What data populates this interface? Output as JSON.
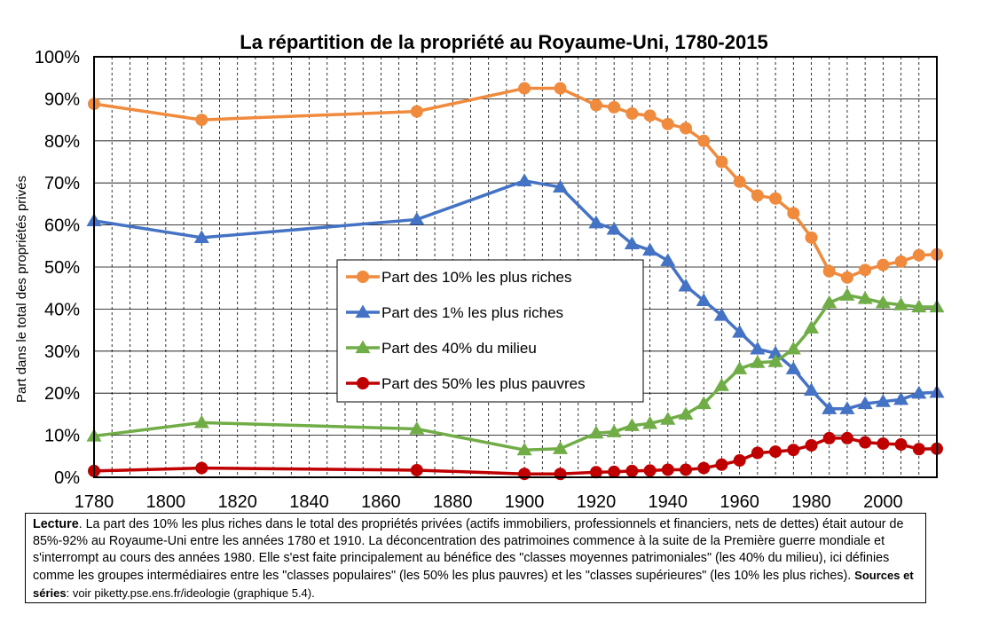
{
  "chart_data": {
    "type": "line",
    "title": "La répartition de la propriété au Royaume-Uni, 1780-2015",
    "xlabel": "",
    "ylabel": "Part dans le total des propriétés privés",
    "xlim": [
      1780,
      2015
    ],
    "ylim": [
      0,
      100
    ],
    "x_ticks": [
      "1780",
      "1800",
      "1820",
      "1840",
      "1860",
      "1880",
      "1900",
      "1920",
      "1940",
      "1960",
      "1980",
      "2000"
    ],
    "y_ticks": [
      "0%",
      "10%",
      "20%",
      "30%",
      "40%",
      "50%",
      "60%",
      "70%",
      "80%",
      "90%",
      "100%"
    ],
    "grid": true,
    "legend_position": "center",
    "series": [
      {
        "name": "Part des 10% les plus riches",
        "color": "#f08a3c",
        "marker": "circle",
        "points": [
          [
            1780,
            88.8
          ],
          [
            1810,
            85
          ],
          [
            1870,
            87
          ],
          [
            1900,
            92.5
          ],
          [
            1910,
            92.5
          ],
          [
            1920,
            88.5
          ],
          [
            1925,
            88
          ],
          [
            1930,
            86.5
          ],
          [
            1935,
            86
          ],
          [
            1940,
            84
          ],
          [
            1945,
            83
          ],
          [
            1950,
            80
          ],
          [
            1955,
            75
          ],
          [
            1960,
            70.3
          ],
          [
            1965,
            67
          ],
          [
            1970,
            66.3
          ],
          [
            1975,
            62.8
          ],
          [
            1980,
            57
          ],
          [
            1985,
            49
          ],
          [
            1990,
            47.5
          ],
          [
            1995,
            49.3
          ],
          [
            2000,
            50.5
          ],
          [
            2005,
            51.3
          ],
          [
            2010,
            52.8
          ],
          [
            2015,
            53
          ]
        ]
      },
      {
        "name": "Part des 1% les plus riches",
        "color": "#4472c4",
        "marker": "triangle",
        "points": [
          [
            1780,
            61
          ],
          [
            1810,
            57
          ],
          [
            1870,
            61.3
          ],
          [
            1900,
            70.5
          ],
          [
            1910,
            69
          ],
          [
            1920,
            60.5
          ],
          [
            1925,
            59
          ],
          [
            1930,
            55.5
          ],
          [
            1935,
            54
          ],
          [
            1940,
            51.5
          ],
          [
            1945,
            45.5
          ],
          [
            1950,
            42
          ],
          [
            1955,
            38.5
          ],
          [
            1960,
            34.5
          ],
          [
            1965,
            30.5
          ],
          [
            1970,
            29.5
          ],
          [
            1975,
            25.8
          ],
          [
            1980,
            20.7
          ],
          [
            1985,
            16.3
          ],
          [
            1990,
            16.3
          ],
          [
            1995,
            17.5
          ],
          [
            2000,
            18
          ],
          [
            2005,
            18.5
          ],
          [
            2010,
            20
          ],
          [
            2015,
            20.2
          ]
        ]
      },
      {
        "name": "Part des 40% du milieu",
        "color": "#70ad47",
        "marker": "triangle",
        "points": [
          [
            1780,
            9.8
          ],
          [
            1810,
            13
          ],
          [
            1870,
            11.5
          ],
          [
            1900,
            6.5
          ],
          [
            1910,
            6.8
          ],
          [
            1920,
            10.5
          ],
          [
            1925,
            10.8
          ],
          [
            1930,
            12.3
          ],
          [
            1935,
            12.8
          ],
          [
            1940,
            13.8
          ],
          [
            1945,
            15
          ],
          [
            1950,
            17.5
          ],
          [
            1955,
            21.8
          ],
          [
            1960,
            25.8
          ],
          [
            1965,
            27.3
          ],
          [
            1970,
            27.5
          ],
          [
            1975,
            30.5
          ],
          [
            1980,
            35.5
          ],
          [
            1985,
            41.5
          ],
          [
            1990,
            43.3
          ],
          [
            1995,
            42.5
          ],
          [
            2000,
            41.5
          ],
          [
            2005,
            41
          ],
          [
            2010,
            40.5
          ],
          [
            2015,
            40.5
          ]
        ]
      },
      {
        "name": "Part des 50% les plus pauvres",
        "color": "#c00000",
        "marker": "circle",
        "points": [
          [
            1780,
            1.5
          ],
          [
            1810,
            2.2
          ],
          [
            1870,
            1.7
          ],
          [
            1900,
            0.8
          ],
          [
            1910,
            0.8
          ],
          [
            1920,
            1.2
          ],
          [
            1925,
            1.3
          ],
          [
            1930,
            1.5
          ],
          [
            1935,
            1.6
          ],
          [
            1940,
            1.8
          ],
          [
            1945,
            1.8
          ],
          [
            1950,
            2.2
          ],
          [
            1955,
            3
          ],
          [
            1960,
            4
          ],
          [
            1965,
            5.8
          ],
          [
            1970,
            6.1
          ],
          [
            1975,
            6.5
          ],
          [
            1980,
            7.6
          ],
          [
            1985,
            9.3
          ],
          [
            1990,
            9.3
          ],
          [
            1995,
            8.3
          ],
          [
            2000,
            8
          ],
          [
            2005,
            7.8
          ],
          [
            2010,
            6.7
          ],
          [
            2015,
            6.8
          ]
        ]
      }
    ]
  },
  "caption": {
    "lecture_label": "Lecture",
    "lecture_text": ". La part des 10% les plus riches dans le total des propriétés privées (actifs immobiliers, professionnels et financiers, nets de dettes) était autour de 85%-92% au Royaume-Uni entre les années 1780 et 1910. La déconcentration des patrimoines commence à la suite de la Première guerre mondiale et s'interrompt au cours des années 1980. Elle s'est faite principalement au bénéfice des \"classes moyennes patrimoniales\" (les 40% du milieu), ici définies comme les groupes intermédiaires entre les \"classes populaires\" (les 50% les plus pauvres) et les \"classes supérieures\" (les 10% les plus riches). ",
    "sources_label": "Sources et séries",
    "sources_text": ": voir piketty.pse.ens.fr/ideologie (graphique 5.4)."
  }
}
